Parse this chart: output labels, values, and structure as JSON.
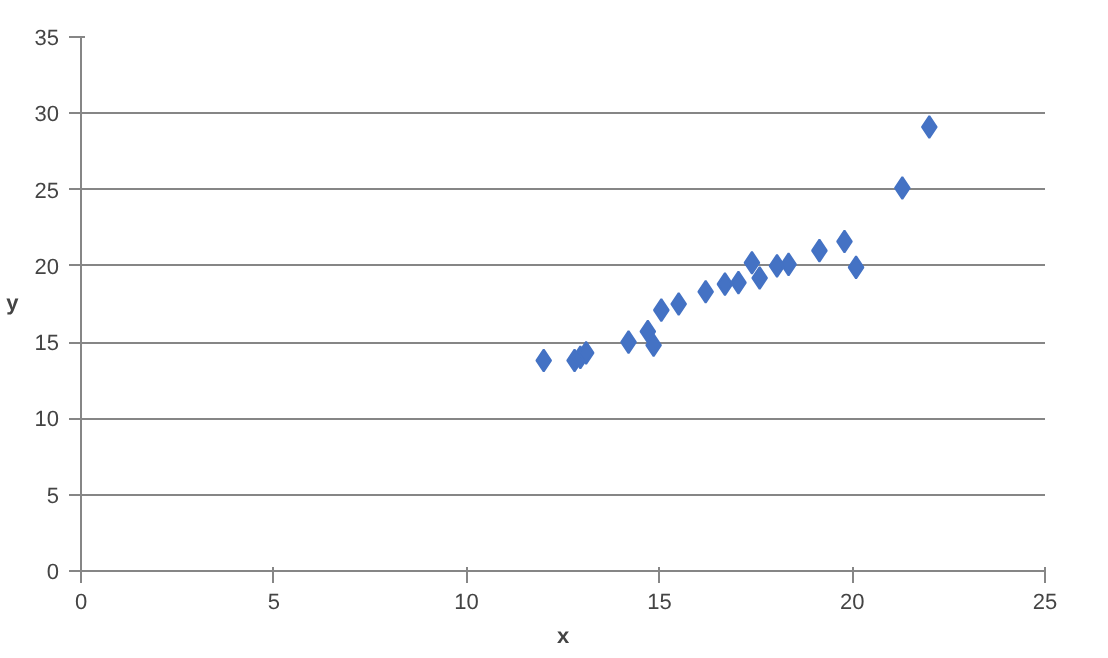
{
  "chart_data": {
    "type": "scatter",
    "xlabel": "x",
    "ylabel": "y",
    "marker": "diamond",
    "grid": "y",
    "x": [
      12.0,
      12.8,
      12.95,
      13.1,
      14.2,
      14.7,
      14.85,
      15.05,
      15.5,
      16.2,
      16.7,
      17.05,
      17.4,
      17.6,
      18.05,
      18.35,
      19.15,
      19.8,
      20.1,
      21.3,
      22.0
    ],
    "series": [
      {
        "color": "#4472c4",
        "values": [
          13.8,
          13.8,
          14.0,
          14.3,
          15.0,
          15.7,
          14.8,
          17.1,
          17.5,
          18.3,
          18.8,
          18.9,
          20.2,
          19.2,
          20.0,
          20.1,
          21.0,
          21.6,
          19.9,
          25.1,
          29.1
        ]
      }
    ],
    "xlim": [
      0,
      25
    ],
    "ylim": [
      0,
      35
    ],
    "xticks": [
      0,
      5,
      10,
      15,
      20,
      25
    ],
    "yticks": [
      0,
      5,
      10,
      15,
      20,
      25,
      30,
      35
    ]
  }
}
